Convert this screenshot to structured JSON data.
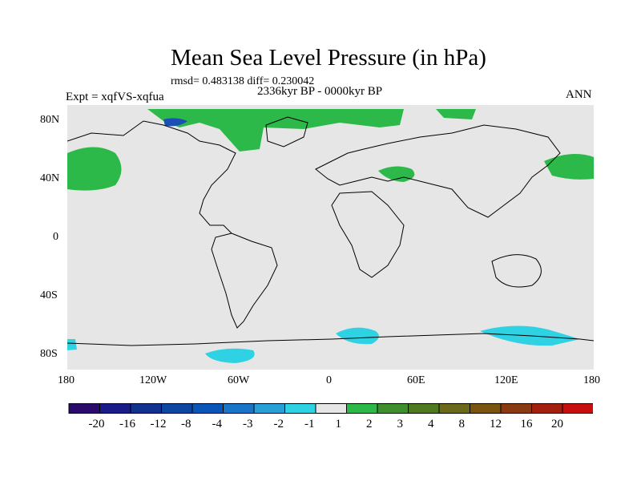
{
  "title": "Mean Sea Level Pressure (in hPa)",
  "stats": "rmsd= 0.483138  diff= 0.230042",
  "period": "2336kyr BP - 0000kyr BP",
  "experiment": "Expt = xqfVS-xqfua",
  "season": "ANN",
  "lat_ticks": [
    "80N",
    "40N",
    "0",
    "40S",
    "80S"
  ],
  "lon_ticks": [
    "180",
    "120W",
    "60W",
    "0",
    "60E",
    "120E",
    "180"
  ],
  "legend": {
    "colors": [
      "#2a0a6a",
      "#1a1a8a",
      "#13318f",
      "#0d47a1",
      "#0a55b8",
      "#1a75c8",
      "#2a9fd6",
      "#2fd2e3",
      "#e6e6e6",
      "#2db84a",
      "#3f8f2f",
      "#4f7a1f",
      "#6b6a1a",
      "#7a5510",
      "#8a3a10",
      "#a3200f",
      "#c80f0f"
    ],
    "labels": [
      "-20",
      "-16",
      "-12",
      "-8",
      "-4",
      "-3",
      "-2",
      "-1",
      "1",
      "2",
      "3",
      "4",
      "8",
      "12",
      "16",
      "20"
    ]
  },
  "colors": {
    "background": "#e6e6e6",
    "positive": "#2db84a",
    "negative": "#2fd2e3"
  }
}
